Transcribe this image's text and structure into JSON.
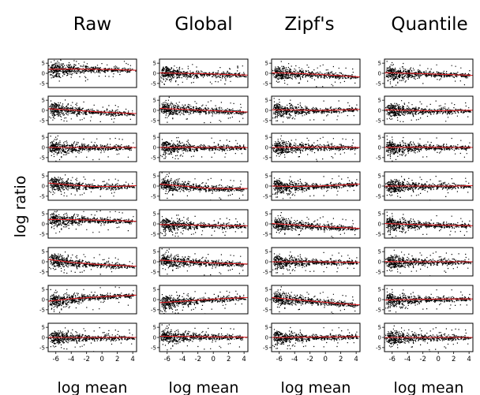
{
  "figure": {
    "column_titles": [
      "Raw",
      "Global",
      "Zipf's",
      "Quantile"
    ],
    "y_axis_label": "log ratio",
    "x_axis_label": "log mean",
    "y_ticks": [
      "5",
      "0",
      "-5"
    ],
    "x_ticks": [
      "-6",
      "-4",
      "-2",
      "0",
      "2",
      "4"
    ]
  },
  "colors": {
    "points": "#000000",
    "trend": "#e8262b"
  },
  "chart_data": [
    {
      "type": "scatter",
      "grid": {
        "rows": 8,
        "cols": 4
      },
      "columns": [
        "Raw",
        "Global",
        "Zipf's",
        "Quantile"
      ],
      "xlabel": "log mean",
      "ylabel": "log ratio",
      "xlim": [
        -7,
        4.5
      ],
      "ylim": [
        -7,
        7
      ],
      "x_ticks": [
        -6,
        -4,
        -2,
        0,
        2,
        4
      ],
      "y_ticks": [
        5,
        0,
        -5
      ],
      "series": [
        {
          "name": "",
          "panels": [
            {
              "row": 1,
              "col": 1,
              "trend": [
                [
                  -7,
                  2.0
                ],
                [
                  -4,
                  2.1
                ],
                [
                  -1,
                  2.0
                ],
                [
                  2,
                  1.8
                ],
                [
                  4.5,
                  1.5
                ]
              ]
            },
            {
              "row": 1,
              "col": 2,
              "trend": [
                [
                  -7,
                  0.2
                ],
                [
                  -4,
                  0.0
                ],
                [
                  -1,
                  -0.2
                ],
                [
                  2,
                  -0.6
                ],
                [
                  4.5,
                  -0.9
                ]
              ]
            },
            {
              "row": 1,
              "col": 3,
              "trend": [
                [
                  -7,
                  0.3
                ],
                [
                  -4,
                  0.0
                ],
                [
                  -1,
                  -0.5
                ],
                [
                  2,
                  -1.2
                ],
                [
                  4.5,
                  -1.8
                ]
              ]
            },
            {
              "row": 1,
              "col": 4,
              "trend": [
                [
                  -7,
                  0.3
                ],
                [
                  -4,
                  0.0
                ],
                [
                  -1,
                  -0.3
                ],
                [
                  2,
                  -0.7
                ],
                [
                  4.5,
                  -1.0
                ]
              ]
            },
            {
              "row": 2,
              "col": 1,
              "trend": [
                [
                  -7,
                  0.8
                ],
                [
                  -4,
                  0.2
                ],
                [
                  -1,
                  -0.6
                ],
                [
                  2,
                  -1.2
                ],
                [
                  4.5,
                  -1.6
                ]
              ]
            },
            {
              "row": 2,
              "col": 2,
              "trend": [
                [
                  -7,
                  1.0
                ],
                [
                  -4,
                  0.5
                ],
                [
                  -1,
                  0.0
                ],
                [
                  2,
                  -0.5
                ],
                [
                  4.5,
                  -0.8
                ]
              ]
            },
            {
              "row": 2,
              "col": 3,
              "trend": [
                [
                  -7,
                  0.3
                ],
                [
                  -4,
                  0.2
                ],
                [
                  -1,
                  0.0
                ],
                [
                  2,
                  0.2
                ],
                [
                  4.5,
                  0.5
                ]
              ]
            },
            {
              "row": 2,
              "col": 4,
              "trend": [
                [
                  -7,
                  0.3
                ],
                [
                  -4,
                  0.0
                ],
                [
                  -1,
                  -0.2
                ],
                [
                  2,
                  -0.1
                ],
                [
                  4.5,
                  0.1
                ]
              ]
            },
            {
              "row": 3,
              "col": 1,
              "trend": [
                [
                  -7,
                  0.0
                ],
                [
                  -4,
                  0.0
                ],
                [
                  -1,
                  0.0
                ],
                [
                  2,
                  0.0
                ],
                [
                  4.5,
                  0.0
                ]
              ]
            },
            {
              "row": 3,
              "col": 2,
              "trend": [
                [
                  -7,
                  0.0
                ],
                [
                  -4,
                  0.1
                ],
                [
                  -1,
                  0.0
                ],
                [
                  2,
                  0.0
                ],
                [
                  4.5,
                  -0.1
                ]
              ]
            },
            {
              "row": 3,
              "col": 3,
              "trend": [
                [
                  -7,
                  0.0
                ],
                [
                  -4,
                  0.1
                ],
                [
                  -1,
                  0.2
                ],
                [
                  2,
                  0.1
                ],
                [
                  4.5,
                  0.0
                ]
              ]
            },
            {
              "row": 3,
              "col": 4,
              "trend": [
                [
                  -7,
                  0.0
                ],
                [
                  -4,
                  0.1
                ],
                [
                  -1,
                  0.1
                ],
                [
                  2,
                  0.0
                ],
                [
                  4.5,
                  0.0
                ]
              ]
            },
            {
              "row": 4,
              "col": 1,
              "trend": [
                [
                  -7,
                  1.5
                ],
                [
                  -4,
                  0.5
                ],
                [
                  -1,
                  -0.2
                ],
                [
                  2,
                  -0.2
                ],
                [
                  4.5,
                  0.2
                ]
              ]
            },
            {
              "row": 4,
              "col": 2,
              "trend": [
                [
                  -7,
                  1.0
                ],
                [
                  -4,
                  0.0
                ],
                [
                  -1,
                  -1.0
                ],
                [
                  2,
                  -1.3
                ],
                [
                  4.5,
                  -1.2
                ]
              ]
            },
            {
              "row": 4,
              "col": 3,
              "trend": [
                [
                  -7,
                  0.0
                ],
                [
                  -4,
                  -0.2
                ],
                [
                  -1,
                  0.0
                ],
                [
                  2,
                  0.5
                ],
                [
                  4.5,
                  1.0
                ]
              ]
            },
            {
              "row": 4,
              "col": 4,
              "trend": [
                [
                  -7,
                  0.0
                ],
                [
                  -4,
                  0.0
                ],
                [
                  -1,
                  0.0
                ],
                [
                  2,
                  0.0
                ],
                [
                  4.5,
                  0.2
                ]
              ]
            },
            {
              "row": 5,
              "col": 1,
              "trend": [
                [
                  -7,
                  2.2
                ],
                [
                  -4,
                  2.1
                ],
                [
                  -1,
                  1.9
                ],
                [
                  2,
                  1.6
                ],
                [
                  4.5,
                  1.3
                ]
              ]
            },
            {
              "row": 5,
              "col": 2,
              "trend": [
                [
                  -7,
                  -0.3
                ],
                [
                  -4,
                  -0.5
                ],
                [
                  -1,
                  -0.7
                ],
                [
                  2,
                  -0.9
                ],
                [
                  4.5,
                  -1.0
                ]
              ]
            },
            {
              "row": 5,
              "col": 3,
              "trend": [
                [
                  -7,
                  0.2
                ],
                [
                  -4,
                  -0.5
                ],
                [
                  -1,
                  -1.2
                ],
                [
                  2,
                  -1.8
                ],
                [
                  4.5,
                  -2.2
                ]
              ]
            },
            {
              "row": 5,
              "col": 4,
              "trend": [
                [
                  -7,
                  0.2
                ],
                [
                  -4,
                  -0.2
                ],
                [
                  -1,
                  -0.5
                ],
                [
                  2,
                  -0.7
                ],
                [
                  4.5,
                  -0.9
                ]
              ]
            },
            {
              "row": 6,
              "col": 1,
              "trend": [
                [
                  -7,
                  1.2
                ],
                [
                  -4,
                  -0.3
                ],
                [
                  -1,
                  -1.2
                ],
                [
                  2,
                  -1.8
                ],
                [
                  4.5,
                  -2.2
                ]
              ]
            },
            {
              "row": 6,
              "col": 2,
              "trend": [
                [
                  -7,
                  0.8
                ],
                [
                  -4,
                  0.2
                ],
                [
                  -1,
                  -0.5
                ],
                [
                  2,
                  -0.9
                ],
                [
                  4.5,
                  -1.1
                ]
              ]
            },
            {
              "row": 6,
              "col": 3,
              "trend": [
                [
                  -7,
                  0.0
                ],
                [
                  -4,
                  0.0
                ],
                [
                  -1,
                  0.0
                ],
                [
                  2,
                  -0.2
                ],
                [
                  4.5,
                  -0.3
                ]
              ]
            },
            {
              "row": 6,
              "col": 4,
              "trend": [
                [
                  -7,
                  0.1
                ],
                [
                  -4,
                  0.0
                ],
                [
                  -1,
                  0.0
                ],
                [
                  2,
                  0.0
                ],
                [
                  4.5,
                  0.0
                ]
              ]
            },
            {
              "row": 7,
              "col": 1,
              "trend": [
                [
                  -7,
                  -0.8
                ],
                [
                  -4,
                  0.4
                ],
                [
                  -1,
                  1.2
                ],
                [
                  2,
                  1.8
                ],
                [
                  4.5,
                  2.2
                ]
              ]
            },
            {
              "row": 7,
              "col": 2,
              "trend": [
                [
                  -7,
                  -1.5
                ],
                [
                  -4,
                  -0.8
                ],
                [
                  -1,
                  0.0
                ],
                [
                  2,
                  0.6
                ],
                [
                  4.5,
                  1.0
                ]
              ]
            },
            {
              "row": 7,
              "col": 3,
              "trend": [
                [
                  -7,
                  1.0
                ],
                [
                  -4,
                  0.0
                ],
                [
                  -1,
                  -1.0
                ],
                [
                  2,
                  -2.0
                ],
                [
                  4.5,
                  -2.6
                ]
              ]
            },
            {
              "row": 7,
              "col": 4,
              "trend": [
                [
                  -7,
                  -0.2
                ],
                [
                  -4,
                  0.0
                ],
                [
                  -1,
                  0.2
                ],
                [
                  2,
                  0.3
                ],
                [
                  4.5,
                  0.3
                ]
              ]
            },
            {
              "row": 8,
              "col": 1,
              "trend": [
                [
                  -7,
                  0.0
                ],
                [
                  -4,
                  0.0
                ],
                [
                  -1,
                  0.0
                ],
                [
                  2,
                  0.0
                ],
                [
                  4.5,
                  0.0
                ]
              ]
            },
            {
              "row": 8,
              "col": 2,
              "trend": [
                [
                  -7,
                  0.6
                ],
                [
                  -4,
                  0.5
                ],
                [
                  -1,
                  0.3
                ],
                [
                  2,
                  0.2
                ],
                [
                  4.5,
                  0.1
                ]
              ]
            },
            {
              "row": 8,
              "col": 3,
              "trend": [
                [
                  -7,
                  0.0
                ],
                [
                  -4,
                  0.1
                ],
                [
                  -1,
                  0.2
                ],
                [
                  2,
                  0.3
                ],
                [
                  4.5,
                  0.4
                ]
              ]
            },
            {
              "row": 8,
              "col": 4,
              "trend": [
                [
                  -7,
                  0.0
                ],
                [
                  -4,
                  0.0
                ],
                [
                  -1,
                  0.0
                ],
                [
                  2,
                  0.0
                ],
                [
                  4.5,
                  0.0
                ]
              ]
            }
          ]
        }
      ]
    }
  ]
}
